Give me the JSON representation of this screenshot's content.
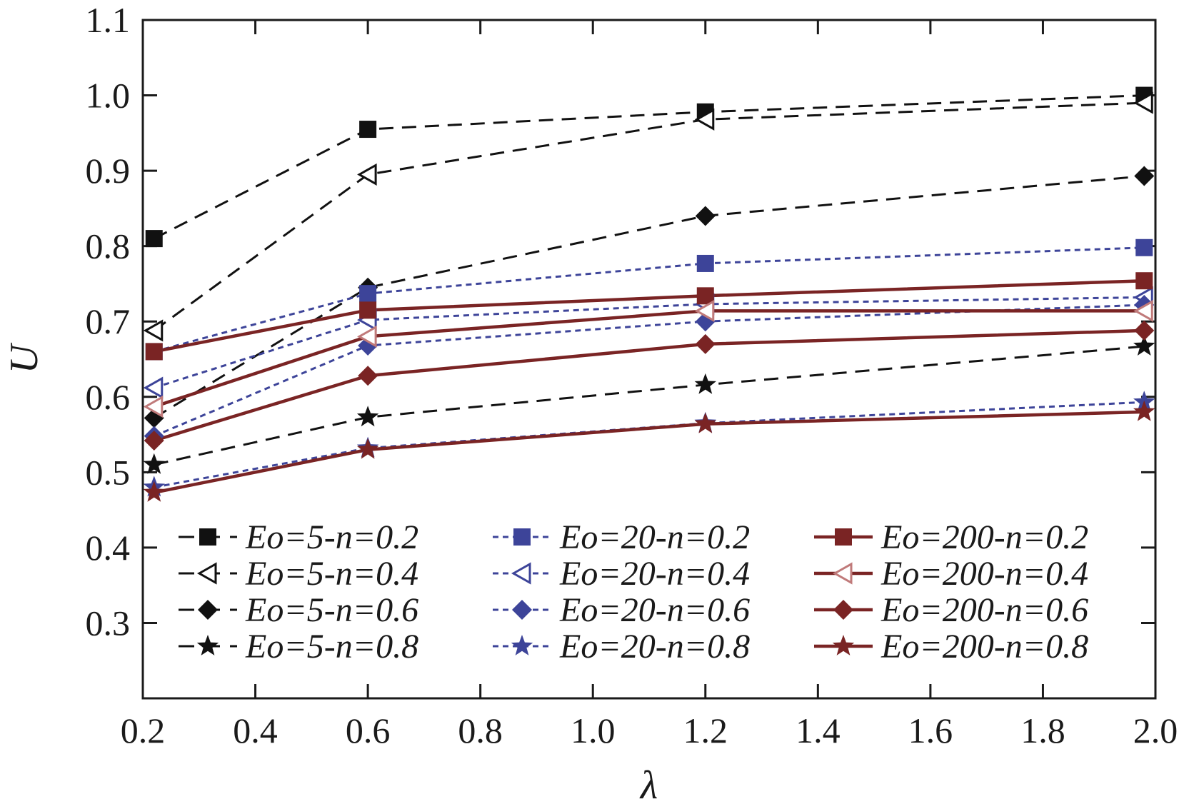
{
  "chart_data": {
    "type": "line",
    "title": "",
    "xlabel": "λ",
    "ylabel": "U",
    "xlim": [
      0.2,
      2.0
    ],
    "ylim": [
      0.2,
      1.1
    ],
    "xticks": [
      0.2,
      0.4,
      0.6,
      0.8,
      1.0,
      1.2,
      1.4,
      1.6,
      1.8,
      2.0
    ],
    "xtick_labels": [
      "0.2",
      "0.4",
      "0.6",
      "0.8",
      "1.0",
      "1.2",
      "1.4",
      "1.6",
      "1.8",
      "2.0"
    ],
    "yticks": [
      0.3,
      0.4,
      0.5,
      0.6,
      0.7,
      0.8,
      0.9,
      1.0,
      1.1
    ],
    "ytick_labels": [
      "0.3",
      "0.4",
      "0.5",
      "0.6",
      "0.7",
      "0.8",
      "0.9",
      "1.0",
      "1.1"
    ],
    "x": [
      0.22,
      0.6,
      1.2,
      1.98
    ],
    "colors": {
      "eo5": "#111111",
      "eo20": "#3d4499",
      "eo200": "#7a2424",
      "eo200_open": "#c07a7a"
    },
    "legend_position": "lower-right",
    "series": [
      {
        "name": "Eo=5-n=0.2",
        "eo": "Eo=5",
        "n": "n=0.2",
        "group": "eo5",
        "marker": "square",
        "style": "dash",
        "values": [
          0.81,
          0.955,
          0.978,
          1.0
        ]
      },
      {
        "name": "Eo=5-n=0.4",
        "eo": "Eo=5",
        "n": "n=0.4",
        "group": "eo5",
        "marker": "tri-open",
        "style": "dash",
        "values": [
          0.688,
          0.895,
          0.968,
          0.99
        ]
      },
      {
        "name": "Eo=5-n=0.6",
        "eo": "Eo=5",
        "n": "n=0.6",
        "group": "eo5",
        "marker": "diamond",
        "style": "dash",
        "values": [
          0.572,
          0.745,
          0.84,
          0.893
        ]
      },
      {
        "name": "Eo=5-n=0.8",
        "eo": "Eo=5",
        "n": "n=0.8",
        "group": "eo5",
        "marker": "star",
        "style": "dash",
        "values": [
          0.51,
          0.573,
          0.616,
          0.667
        ]
      },
      {
        "name": "Eo=20-n=0.2",
        "eo": "Eo=20",
        "n": "n=0.2",
        "group": "eo20",
        "marker": "square",
        "style": "dot",
        "values": [
          0.66,
          0.737,
          0.777,
          0.798
        ]
      },
      {
        "name": "Eo=20-n=0.4",
        "eo": "Eo=20",
        "n": "n=0.4",
        "group": "eo20",
        "marker": "tri-open",
        "style": "dot",
        "values": [
          0.612,
          0.702,
          0.723,
          0.732
        ]
      },
      {
        "name": "Eo=20-n=0.6",
        "eo": "Eo=20",
        "n": "n=0.6",
        "group": "eo20",
        "marker": "diamond",
        "style": "dot",
        "values": [
          0.548,
          0.668,
          0.7,
          0.722
        ]
      },
      {
        "name": "Eo=20-n=0.8",
        "eo": "Eo=20",
        "n": "n=0.8",
        "group": "eo20",
        "marker": "star",
        "style": "dot",
        "values": [
          0.48,
          0.532,
          0.565,
          0.593
        ]
      },
      {
        "name": "Eo=200-n=0.2",
        "eo": "Eo=200",
        "n": "n=0.2",
        "group": "eo200",
        "marker": "square",
        "style": "solid",
        "values": [
          0.66,
          0.715,
          0.734,
          0.754
        ]
      },
      {
        "name": "Eo=200-n=0.4",
        "eo": "Eo=200",
        "n": "n=0.4",
        "group": "eo200",
        "marker": "tri-open",
        "style": "solid",
        "values": [
          0.587,
          0.68,
          0.714,
          0.714
        ]
      },
      {
        "name": "Eo=200-n=0.6",
        "eo": "Eo=200",
        "n": "n=0.6",
        "group": "eo200",
        "marker": "diamond",
        "style": "solid",
        "values": [
          0.542,
          0.628,
          0.67,
          0.688
        ]
      },
      {
        "name": "Eo=200-n=0.8",
        "eo": "Eo=200",
        "n": "n=0.8",
        "group": "eo200",
        "marker": "star",
        "style": "solid",
        "values": [
          0.473,
          0.53,
          0.564,
          0.58
        ]
      }
    ]
  }
}
